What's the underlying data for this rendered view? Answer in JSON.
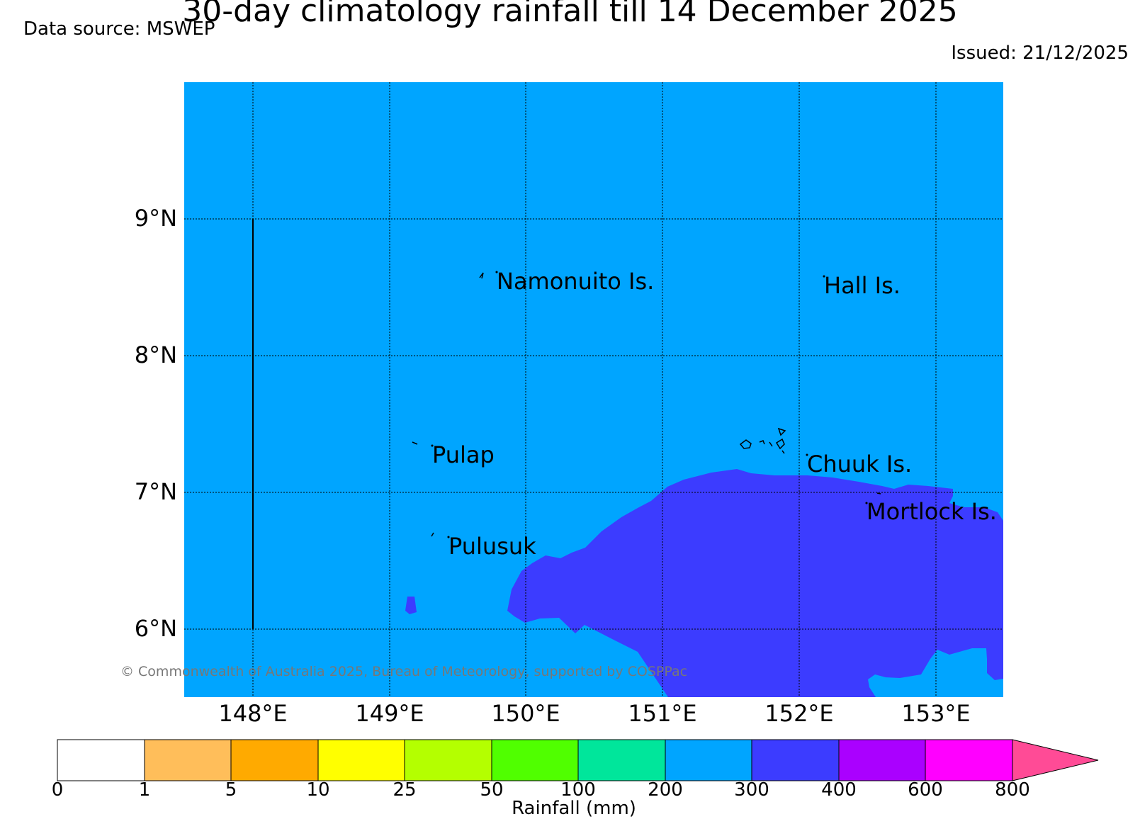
{
  "title": "30-day climatology rainfall till 14 December 2025",
  "data_source": "Data source: MSWEP",
  "issued": "Issued: 21/12/2025",
  "copyright": "© Commonwealth of Australia 2025, Bureau of Meteorology, supported by COSPPac",
  "latitudes": [
    "9°N",
    "8°N",
    "7°N",
    "6°N"
  ],
  "longitudes": [
    "148°E",
    "149°E",
    "150°E",
    "151°E",
    "152°E",
    "153°E"
  ],
  "places": {
    "namonuito": "Namonuito Is.",
    "hall": "Hall Is.",
    "pulap": "Pulap",
    "chuuk": "Chuuk Is.",
    "mortlock": "Mortlock Is.",
    "pulusuk": "Pulusuk"
  },
  "colorbar": {
    "label": "Rainfall (mm)",
    "ticks": [
      "0",
      "1",
      "5",
      "10",
      "25",
      "50",
      "100",
      "200",
      "300",
      "400",
      "600",
      "800"
    ],
    "colors": [
      "#ffffff",
      "#ffbe5a",
      "#ffaa00",
      "#ffff00",
      "#b4ff00",
      "#50ff00",
      "#00e69b",
      "#00a5ff",
      "#3c3cff",
      "#aa00ff",
      "#ff00ff",
      "#ff4b96"
    ]
  },
  "map_colors": {
    "band_200_300": "#00a5ff",
    "band_300_400": "#3c3cff"
  }
}
